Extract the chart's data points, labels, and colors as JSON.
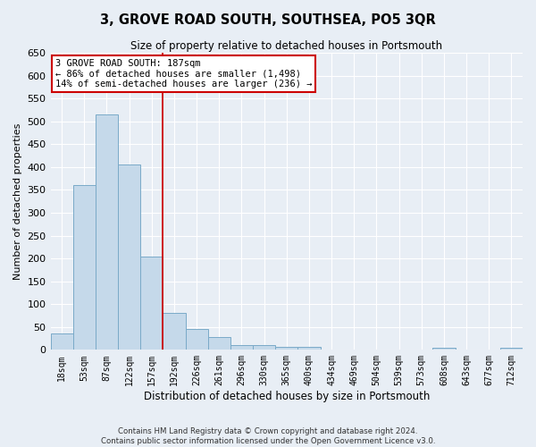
{
  "title": "3, GROVE ROAD SOUTH, SOUTHSEA, PO5 3QR",
  "subtitle": "Size of property relative to detached houses in Portsmouth",
  "xlabel": "Distribution of detached houses by size in Portsmouth",
  "ylabel": "Number of detached properties",
  "bar_color": "#c5d9ea",
  "bar_edge_color": "#7aaac8",
  "categories": [
    "18sqm",
    "53sqm",
    "87sqm",
    "122sqm",
    "157sqm",
    "192sqm",
    "226sqm",
    "261sqm",
    "296sqm",
    "330sqm",
    "365sqm",
    "400sqm",
    "434sqm",
    "469sqm",
    "504sqm",
    "539sqm",
    "573sqm",
    "608sqm",
    "643sqm",
    "677sqm",
    "712sqm"
  ],
  "values": [
    35,
    360,
    515,
    405,
    205,
    80,
    45,
    28,
    10,
    10,
    7,
    7,
    0,
    0,
    0,
    0,
    0,
    5,
    0,
    0,
    5
  ],
  "ylim": [
    0,
    650
  ],
  "yticks": [
    0,
    50,
    100,
    150,
    200,
    250,
    300,
    350,
    400,
    450,
    500,
    550,
    600,
    650
  ],
  "vline_x": 4.5,
  "marker_label": "3 GROVE ROAD SOUTH: 187sqm",
  "annotation_line1": "← 86% of detached houses are smaller (1,498)",
  "annotation_line2": "14% of semi-detached houses are larger (236) →",
  "footer_line1": "Contains HM Land Registry data © Crown copyright and database right 2024.",
  "footer_line2": "Contains public sector information licensed under the Open Government Licence v3.0.",
  "background_color": "#e8eef5",
  "plot_background": "#e8eef5",
  "grid_color": "#ffffff",
  "annotation_box_facecolor": "#ffffff",
  "annotation_border_color": "#cc0000",
  "vline_color": "#cc0000"
}
